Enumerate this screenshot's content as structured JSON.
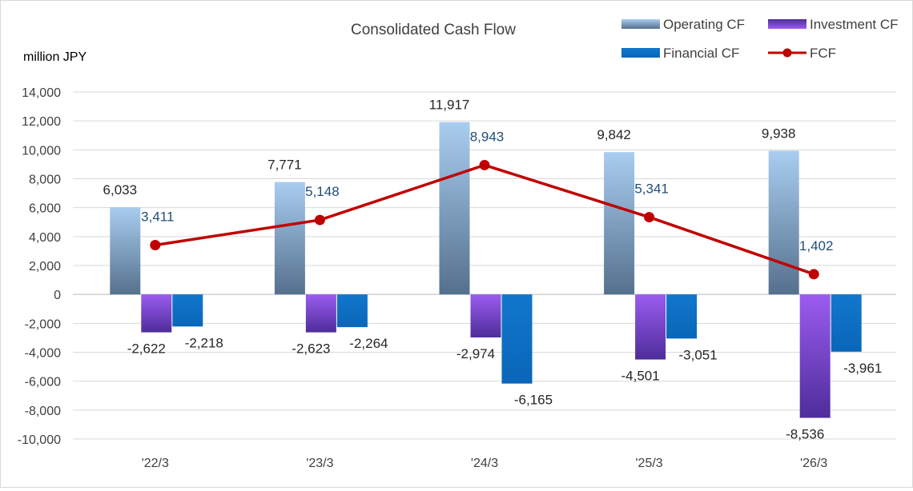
{
  "chart_data": {
    "type": "bar",
    "title": "Consolidated Cash Flow",
    "ylabel": "million JPY",
    "categories": [
      "'22/3",
      "'23/3",
      "'24/3",
      "'25/3",
      "'26/3"
    ],
    "ylim": [
      -10000,
      14000
    ],
    "yticks": [
      14000,
      12000,
      10000,
      8000,
      6000,
      4000,
      2000,
      0,
      -2000,
      -4000,
      -6000,
      -8000,
      -10000
    ],
    "ytick_labels": [
      "14,000",
      "12,000",
      "10,000",
      "8,000",
      "6,000",
      "4,000",
      "2,000",
      "0",
      "-2,000",
      "-4,000",
      "-6,000",
      "-8,000",
      "-10,000"
    ],
    "grid": true,
    "legend_position": "top-right",
    "series": [
      {
        "name": "Operating CF",
        "kind": "bar",
        "values": [
          6033,
          7771,
          11917,
          9842,
          9938
        ],
        "labels": [
          "6,033",
          "7,771",
          "11,917",
          "9,842",
          "9,938"
        ],
        "color": "#8db4e2"
      },
      {
        "name": "Investment CF",
        "kind": "bar",
        "values": [
          -2622,
          -2623,
          -2974,
          -4501,
          -8536
        ],
        "labels": [
          "-2,622",
          "-2,623",
          "-2,974",
          "-4,501",
          "-8,536"
        ],
        "color": "#8a4fe0"
      },
      {
        "name": "Financial CF",
        "kind": "bar",
        "values": [
          -2218,
          -2264,
          -6165,
          -3051,
          -3961
        ],
        "labels": [
          "-2,218",
          "-2,264",
          "-6,165",
          "-3,051",
          "-3,961"
        ],
        "color": "#0f6fc6"
      },
      {
        "name": "FCF",
        "kind": "line",
        "values": [
          3411,
          5148,
          8943,
          5341,
          1402
        ],
        "labels": [
          "3,411",
          "5,148",
          "8,943",
          "5,341",
          "1,402"
        ],
        "color": "#c00000"
      }
    ]
  }
}
